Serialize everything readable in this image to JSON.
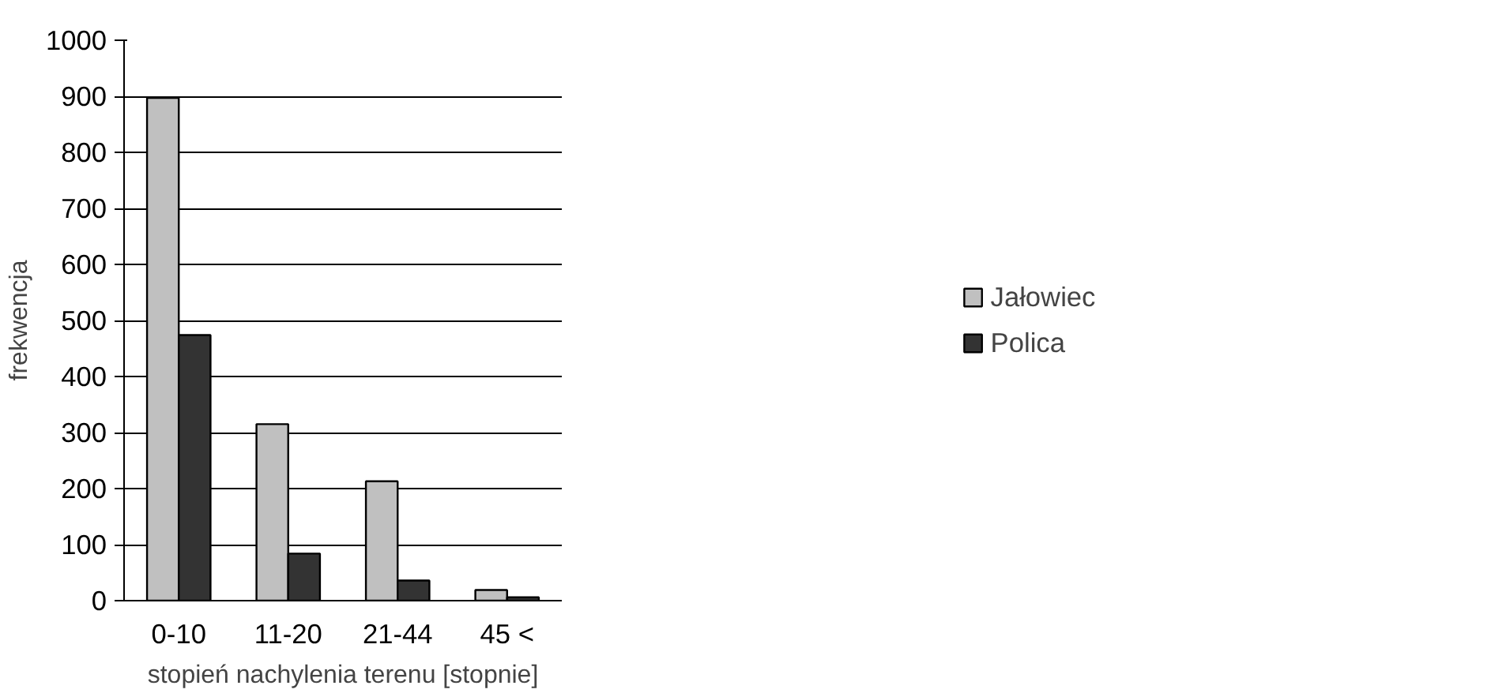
{
  "chart_data": {
    "type": "bar",
    "xlabel": "stopień nachylenia terenu [stopnie]",
    "ylabel": "frekwencja",
    "categories": [
      "0-10",
      "11-20",
      "21-44",
      "45 <"
    ],
    "series": [
      {
        "name": "Jałowiec",
        "color": "#c0c0c0",
        "values": [
          897,
          315,
          213,
          19
        ]
      },
      {
        "name": "Polica",
        "color": "#333333",
        "values": [
          474,
          84,
          36,
          6
        ]
      }
    ],
    "ylim": [
      0,
      1000
    ],
    "yticks": [
      0,
      100,
      200,
      300,
      400,
      500,
      600,
      700,
      800,
      900,
      1000
    ],
    "grid": "y",
    "legend": "right"
  }
}
